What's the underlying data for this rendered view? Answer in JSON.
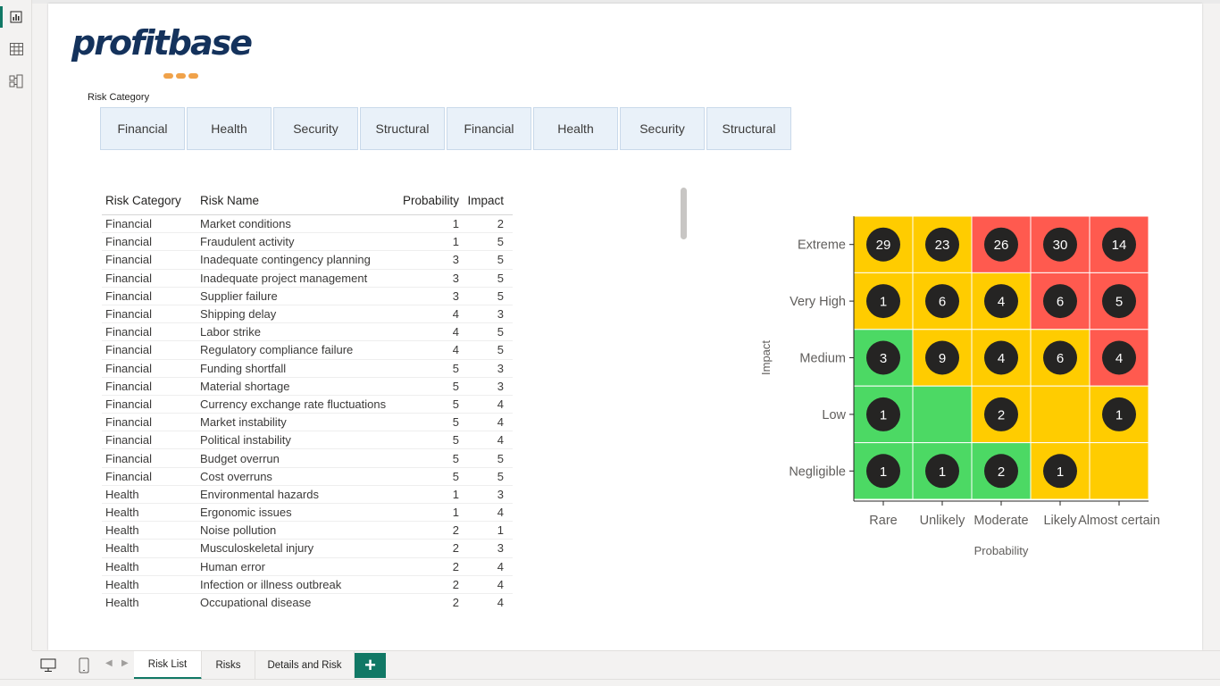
{
  "slicer": {
    "title": "Risk Category",
    "items": [
      "Financial",
      "Health",
      "Security",
      "Structural",
      "Financial",
      "Health",
      "Security",
      "Structural"
    ]
  },
  "logo": {
    "text": "profitbase"
  },
  "table": {
    "columns": [
      "Risk Category",
      "Risk Name",
      "Probability",
      "Impact"
    ],
    "rows": [
      [
        "Financial",
        "Market conditions",
        "1",
        "2"
      ],
      [
        "Financial",
        "Fraudulent activity",
        "1",
        "5"
      ],
      [
        "Financial",
        "Inadequate contingency planning",
        "3",
        "5"
      ],
      [
        "Financial",
        "Inadequate project management",
        "3",
        "5"
      ],
      [
        "Financial",
        "Supplier failure",
        "3",
        "5"
      ],
      [
        "Financial",
        "Shipping delay",
        "4",
        "3"
      ],
      [
        "Financial",
        "Labor strike",
        "4",
        "5"
      ],
      [
        "Financial",
        "Regulatory compliance failure",
        "4",
        "5"
      ],
      [
        "Financial",
        "Funding shortfall",
        "5",
        "3"
      ],
      [
        "Financial",
        "Material shortage",
        "5",
        "3"
      ],
      [
        "Financial",
        "Currency exchange rate fluctuations",
        "5",
        "4"
      ],
      [
        "Financial",
        "Market instability",
        "5",
        "4"
      ],
      [
        "Financial",
        "Political instability",
        "5",
        "4"
      ],
      [
        "Financial",
        "Budget overrun",
        "5",
        "5"
      ],
      [
        "Financial",
        "Cost overruns",
        "5",
        "5"
      ],
      [
        "Health",
        "Environmental hazards",
        "1",
        "3"
      ],
      [
        "Health",
        "Ergonomic issues",
        "1",
        "4"
      ],
      [
        "Health",
        "Noise pollution",
        "2",
        "1"
      ],
      [
        "Health",
        "Musculoskeletal injury",
        "2",
        "3"
      ],
      [
        "Health",
        "Human error",
        "2",
        "4"
      ],
      [
        "Health",
        "Infection or illness outbreak",
        "2",
        "4"
      ],
      [
        "Health",
        "Occupational disease",
        "2",
        "4"
      ]
    ]
  },
  "matrix": {
    "xlabel": "Probability",
    "ylabel": "Impact",
    "x_categories": [
      "Rare",
      "Unlikely",
      "Moderate",
      "Likely",
      "Almost certain"
    ],
    "y_categories": [
      "Extreme",
      "Very High",
      "Medium",
      "Low",
      "Negligible"
    ],
    "colors": {
      "green": "#4cd964",
      "yellow": "#ffcc00",
      "red": "#ff5a4f",
      "bubble": "#252423"
    },
    "cells": [
      [
        "yellow",
        "yellow",
        "red",
        "red",
        "red"
      ],
      [
        "yellow",
        "yellow",
        "yellow",
        "red",
        "red"
      ],
      [
        "green",
        "yellow",
        "yellow",
        "yellow",
        "red"
      ],
      [
        "green",
        "green",
        "yellow",
        "yellow",
        "yellow"
      ],
      [
        "green",
        "green",
        "green",
        "yellow",
        "yellow"
      ]
    ],
    "counts": [
      [
        "29",
        "23",
        "26",
        "30",
        "14"
      ],
      [
        "1",
        "6",
        "4",
        "6",
        "5"
      ],
      [
        "3",
        "9",
        "4",
        "6",
        "4"
      ],
      [
        "1",
        "",
        "2",
        "",
        "1"
      ],
      [
        "1",
        "1",
        "2",
        "1",
        ""
      ]
    ]
  },
  "tabs": {
    "items": [
      "Risk List",
      "Risks",
      "Details and Risk"
    ],
    "active": 0,
    "add_label": "+"
  },
  "rail_icons": [
    "report-view-icon",
    "table-view-icon",
    "model-view-icon"
  ]
}
